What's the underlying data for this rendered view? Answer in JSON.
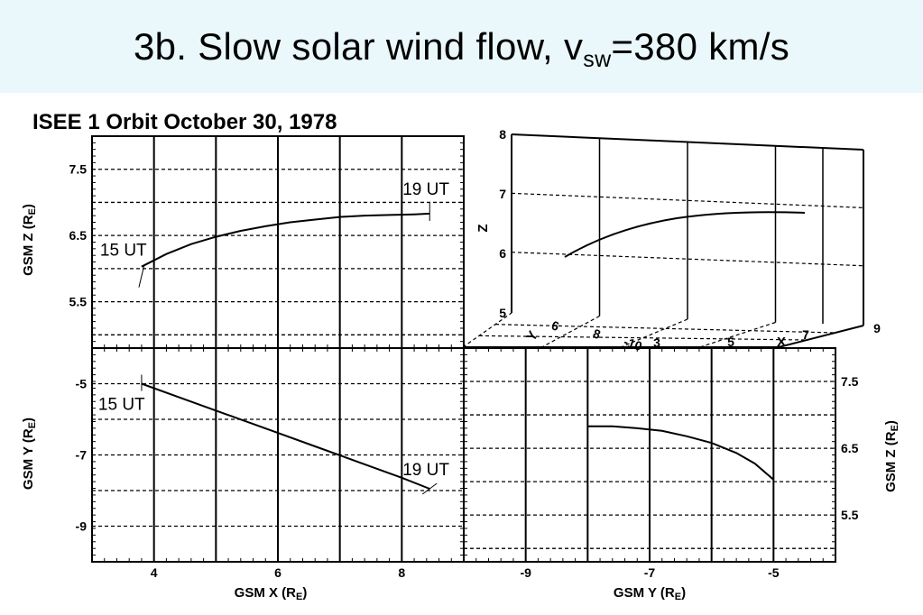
{
  "page": {
    "title_main": "3b. Slow solar wind flow, v",
    "title_sub": "sw",
    "title_tail": "=380 km/s"
  },
  "figure": {
    "title": "ISEE 1 Orbit October 30, 1978"
  },
  "chart_data": [
    {
      "id": "xz",
      "type": "line",
      "xlabel": "GSM X (R",
      "xlabel_sub": "E",
      "xlabel_tail": ")",
      "ylabel": "GSM Z (R",
      "ylabel_sub": "E",
      "ylabel_tail": ")",
      "xlim": [
        3,
        9
      ],
      "ylim": [
        4.8,
        8
      ],
      "xticks": [
        4,
        6,
        8
      ],
      "yticks": [
        5.5,
        6.5,
        7.5
      ],
      "x": [
        3.8,
        4.2,
        4.6,
        5.0,
        5.4,
        5.8,
        6.2,
        6.6,
        7.0,
        7.4,
        7.8,
        8.2,
        8.45
      ],
      "y": [
        6.03,
        6.22,
        6.37,
        6.48,
        6.57,
        6.64,
        6.7,
        6.74,
        6.78,
        6.8,
        6.81,
        6.82,
        6.83
      ],
      "annotations": [
        {
          "text": "15 UT",
          "x": 3.8,
          "y": 6.03
        },
        {
          "text": "19 UT",
          "x": 8.45,
          "y": 6.83
        }
      ]
    },
    {
      "id": "xy",
      "type": "line",
      "xlabel": "GSM X (R",
      "xlabel_sub": "E",
      "xlabel_tail": ")",
      "ylabel": "GSM Y (R",
      "ylabel_sub": "E",
      "ylabel_tail": ")",
      "xlim": [
        3,
        9
      ],
      "ylim": [
        -10,
        -4
      ],
      "xticks": [
        4,
        6,
        8
      ],
      "yticks": [
        -5,
        -7,
        -9
      ],
      "x": [
        3.8,
        4.5,
        5.2,
        5.9,
        6.6,
        7.3,
        8.0,
        8.45
      ],
      "y": [
        -5.0,
        -5.44,
        -5.88,
        -6.32,
        -6.76,
        -7.2,
        -7.64,
        -7.95
      ],
      "annotations": [
        {
          "text": "15 UT",
          "x": 3.8,
          "y": -5.0
        },
        {
          "text": "19 UT",
          "x": 8.45,
          "y": -7.95
        }
      ]
    },
    {
      "id": "yz",
      "type": "line",
      "xlabel": "GSM Y (R",
      "xlabel_sub": "E",
      "xlabel_tail": ")",
      "ylabel": "GSM Z (R",
      "ylabel_sub": "E",
      "ylabel_tail": ")",
      "xlim": [
        -10,
        -4
      ],
      "ylim": [
        4.8,
        8
      ],
      "xticks": [
        -9,
        -7,
        -5
      ],
      "yticks": [
        5.5,
        6.5,
        7.5
      ],
      "x": [
        -8.0,
        -7.6,
        -7.2,
        -6.8,
        -6.4,
        -6.0,
        -5.6,
        -5.3,
        -5.0
      ],
      "y": [
        6.83,
        6.83,
        6.8,
        6.76,
        6.68,
        6.58,
        6.43,
        6.27,
        6.03
      ]
    },
    {
      "id": "xyz",
      "type": "line3d",
      "zlabel": "Z",
      "ylabel": "Y",
      "xlabel": "X",
      "zticks": [
        5,
        6,
        7,
        8
      ],
      "yticks": [
        6,
        8,
        -10
      ],
      "xticks": [
        3,
        5,
        7,
        9
      ]
    }
  ]
}
